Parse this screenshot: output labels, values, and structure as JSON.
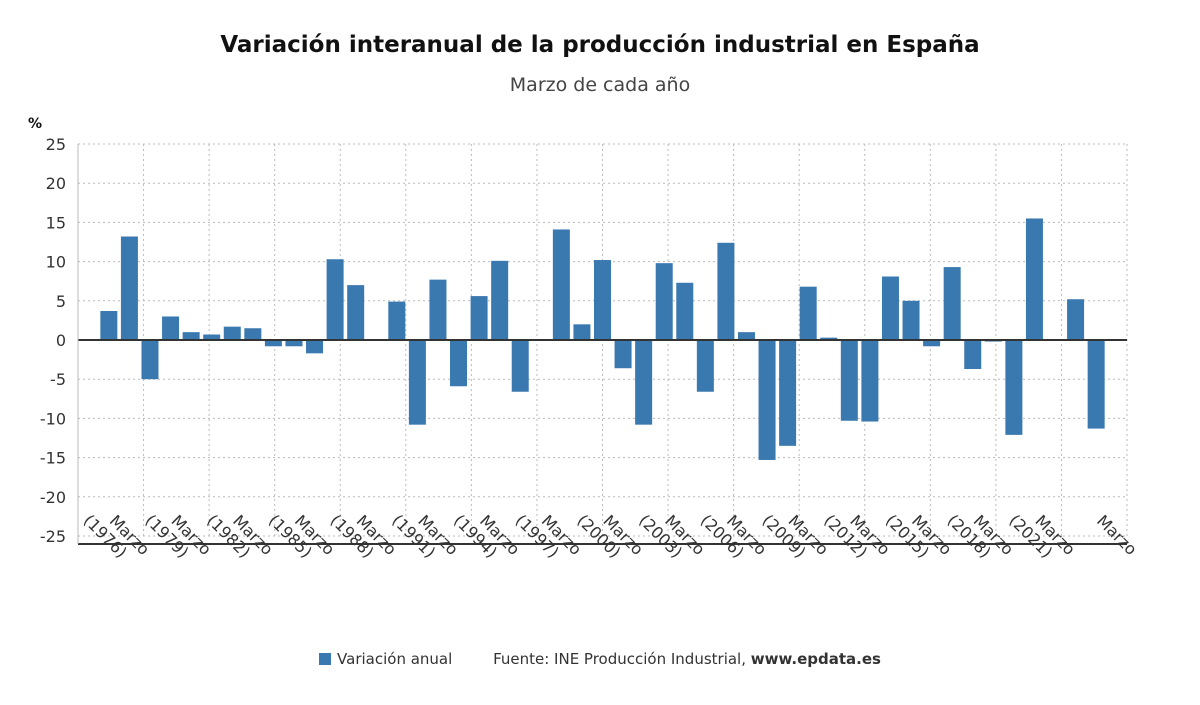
{
  "chart_data": {
    "type": "bar",
    "title": "Variación interanual de la producción industrial en España",
    "subtitle": "Marzo de cada año",
    "ylabel": "%",
    "ylim": [
      -25,
      25
    ],
    "yticks": [
      25,
      20,
      15,
      10,
      5,
      0,
      -5,
      -10,
      -15,
      -20,
      -25
    ],
    "grid": true,
    "color": "#3a78b0",
    "years": [
      1976,
      1977,
      1978,
      1979,
      1980,
      1981,
      1982,
      1983,
      1984,
      1985,
      1986,
      1987,
      1988,
      1989,
      1990,
      1991,
      1992,
      1993,
      1994,
      1995,
      1996,
      1997,
      1998,
      1999,
      2000,
      2001,
      2002,
      2003,
      2004,
      2005,
      2006,
      2007,
      2008,
      2009,
      2010,
      2011,
      2012,
      2013,
      2014,
      2015,
      2016,
      2017,
      2018,
      2019,
      2020,
      2021,
      2022,
      2023,
      2024
    ],
    "values": [
      3.7,
      13.2,
      -5.0,
      3.0,
      1.0,
      0.7,
      1.7,
      1.5,
      -0.8,
      -0.8,
      -1.7,
      10.3,
      7.0,
      null,
      4.9,
      -10.8,
      7.7,
      -5.9,
      5.6,
      10.1,
      -6.6,
      0.0,
      14.1,
      2.0,
      10.2,
      -3.6,
      -10.8,
      9.8,
      7.3,
      -6.6,
      12.4,
      1.0,
      -15.3,
      -13.5,
      6.8,
      0.3,
      -10.3,
      -10.4,
      8.1,
      5.0,
      -0.8,
      9.3,
      -3.7,
      -0.2,
      -12.1,
      15.5,
      null,
      5.2,
      -11.3
    ],
    "xtick_labels": [
      "Marzo (1976)",
      "Marzo (1979)",
      "Marzo (1982)",
      "Marzo (1985)",
      "Marzo (1988)",
      "Marzo (1991)",
      "Marzo (1994)",
      "Marzo (1997)",
      "Marzo (2000)",
      "Marzo (2003)",
      "Marzo (2006)",
      "Marzo (2009)",
      "Marzo (2012)",
      "Marzo (2015)",
      "Marzo (2018)",
      "Marzo (2021)",
      "Marzo"
    ],
    "legend": {
      "series": "Variación anual",
      "source": "Fuente: INE Producción Industrial, ",
      "site": "www.epdata.es",
      "position": "bottom"
    }
  }
}
